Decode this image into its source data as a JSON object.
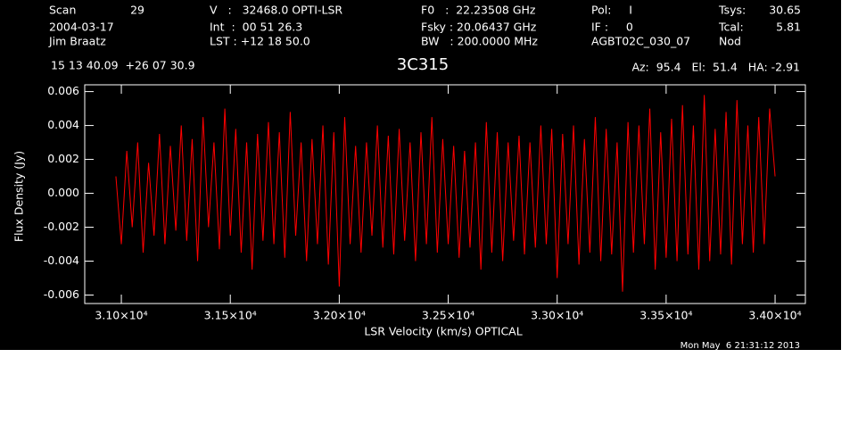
{
  "chart_data": {
    "type": "line",
    "title": "3C315",
    "header": {
      "scan_label": "Scan",
      "scan": "29",
      "date": "2004-03-17",
      "observer": "Jim Braatz",
      "velocity": "V   :   32468.0 OPTI-LSR",
      "integration": "Int  :  00 51 26.3",
      "lst": "LST : +12 18 50.0",
      "f0": "F0   :  22.23508 GHz",
      "fsky": "Fsky : 20.06437 GHz",
      "bw": "BW   : 200.0000 MHz",
      "pol": "Pol:     I",
      "if": "IF :     0",
      "project": "AGBT02C_030_07",
      "tsys_label": "Tsys:",
      "tsys": "30.65",
      "tcal_label": "Tcal:",
      "tcal": "5.81",
      "mode": "Nod",
      "coords": "15 13 40.09  +26 07 30.9",
      "pointing": "Az:  95.4   El:  51.4   HA: -2.91"
    },
    "footer": "Mon May  6 21:31:12 2013",
    "x_label": "LSR Velocity (km/s) OPTICAL",
    "y_label": "Flux Density (Jy)",
    "xlim": [
      30832,
      34139
    ],
    "ylim": [
      -0.0065,
      0.0064
    ],
    "xticks": [
      {
        "value": 31000,
        "label": "3.10×10⁴"
      },
      {
        "value": 31500,
        "label": "3.15×10⁴"
      },
      {
        "value": 32000,
        "label": "3.20×10⁴"
      },
      {
        "value": 32500,
        "label": "3.25×10⁴"
      },
      {
        "value": 33000,
        "label": "3.30×10⁴"
      },
      {
        "value": 33500,
        "label": "3.35×10⁴"
      },
      {
        "value": 34000,
        "label": "3.40×10⁴"
      }
    ],
    "yticks": [
      -0.006,
      -0.004,
      -0.002,
      {
        "value": 0,
        "label": "0.000"
      },
      0.002,
      0.004,
      0.006
    ],
    "color": "#ff0000",
    "x": [
      30975,
      31000,
      31025,
      31050,
      31075,
      31100,
      31125,
      31150,
      31175,
      31200,
      31225,
      31250,
      31275,
      31300,
      31325,
      31350,
      31375,
      31400,
      31425,
      31450,
      31475,
      31500,
      31525,
      31550,
      31575,
      31600,
      31625,
      31650,
      31675,
      31700,
      31725,
      31750,
      31775,
      31800,
      31825,
      31850,
      31875,
      31900,
      31925,
      31950,
      31975,
      32000,
      32025,
      32050,
      32075,
      32100,
      32125,
      32150,
      32175,
      32200,
      32225,
      32250,
      32275,
      32300,
      32325,
      32350,
      32375,
      32400,
      32425,
      32450,
      32475,
      32500,
      32525,
      32550,
      32575,
      32600,
      32625,
      32650,
      32675,
      32700,
      32725,
      32750,
      32775,
      32800,
      32825,
      32850,
      32875,
      32900,
      32925,
      32950,
      32975,
      33000,
      33025,
      33050,
      33075,
      33100,
      33125,
      33150,
      33175,
      33200,
      33225,
      33250,
      33275,
      33300,
      33325,
      33350,
      33375,
      33400,
      33425,
      33450,
      33475,
      33500,
      33525,
      33550,
      33575,
      33600,
      33625,
      33650,
      33675,
      33700,
      33725,
      33750,
      33775,
      33800,
      33825,
      33850,
      33875,
      33900,
      33925,
      33950,
      33975,
      34000
    ],
    "values": [
      0.001,
      -0.003,
      0.0025,
      -0.002,
      0.003,
      -0.0035,
      0.0018,
      -0.0025,
      0.0035,
      -0.003,
      0.0028,
      -0.0022,
      0.004,
      -0.0028,
      0.0032,
      -0.004,
      0.0045,
      -0.002,
      0.003,
      -0.0033,
      0.005,
      -0.0025,
      0.0038,
      -0.0035,
      0.003,
      -0.0045,
      0.0035,
      -0.0028,
      0.0042,
      -0.003,
      0.0036,
      -0.0038,
      0.0048,
      -0.0025,
      0.003,
      -0.004,
      0.0032,
      -0.003,
      0.004,
      -0.0042,
      0.0036,
      -0.0055,
      0.0045,
      -0.003,
      0.0028,
      -0.0035,
      0.003,
      -0.0025,
      0.004,
      -0.0032,
      0.0034,
      -0.0036,
      0.0038,
      -0.0028,
      0.003,
      -0.004,
      0.0036,
      -0.003,
      0.0045,
      -0.0035,
      0.0032,
      -0.003,
      0.0028,
      -0.0038,
      0.0025,
      -0.0032,
      0.003,
      -0.0045,
      0.0042,
      -0.0035,
      0.0036,
      -0.004,
      0.003,
      -0.0028,
      0.0034,
      -0.0036,
      0.003,
      -0.0032,
      0.004,
      -0.003,
      0.0038,
      -0.005,
      0.0035,
      -0.003,
      0.004,
      -0.0042,
      0.0032,
      -0.0035,
      0.0045,
      -0.004,
      0.0038,
      -0.0036,
      0.003,
      -0.0058,
      0.0042,
      -0.0035,
      0.004,
      -0.003,
      0.005,
      -0.0045,
      0.0036,
      -0.0038,
      0.0044,
      -0.004,
      0.0052,
      -0.0036,
      0.004,
      -0.0045,
      0.0058,
      -0.004,
      0.0038,
      -0.0036,
      0.0048,
      -0.0042,
      0.0055,
      -0.003,
      0.004,
      -0.0035,
      0.0045,
      -0.003,
      0.005,
      0.001
    ]
  }
}
